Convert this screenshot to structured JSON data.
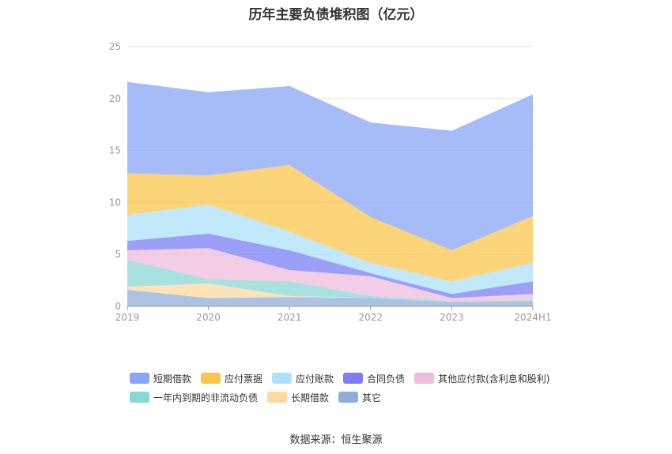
{
  "chart_data": {
    "type": "area",
    "stacked": true,
    "title": "历年主要负债堆积图（亿元）",
    "categories": [
      "2019",
      "2020",
      "2021",
      "2022",
      "2023",
      "2024H1"
    ],
    "ylim": [
      0,
      25
    ],
    "yticks": [
      0,
      5,
      10,
      15,
      20,
      25
    ],
    "grid": true,
    "legend_position": "bottom",
    "series": [
      {
        "name": "其它",
        "color": "#8faedb",
        "values": [
          1.6,
          0.8,
          0.9,
          0.8,
          0.4,
          0.5
        ]
      },
      {
        "name": "长期借款",
        "color": "#fdd9a0",
        "values": [
          0.3,
          1.4,
          0.1,
          0.0,
          0.0,
          0.0
        ]
      },
      {
        "name": "一年内到期的非流动负债",
        "color": "#8ad8d6",
        "values": [
          2.6,
          0.4,
          1.4,
          0.2,
          0.1,
          0.1
        ]
      },
      {
        "name": "其他应付款(含利息和股利)",
        "color": "#efbbdc",
        "values": [
          0.9,
          3.0,
          1.1,
          1.9,
          0.3,
          0.6
        ]
      },
      {
        "name": "合同负债",
        "color": "#7b7ff5",
        "values": [
          0.9,
          1.4,
          1.9,
          0.3,
          0.4,
          1.2
        ]
      },
      {
        "name": "应付账款",
        "color": "#aee0fa",
        "values": [
          2.5,
          2.8,
          1.8,
          1.0,
          1.2,
          1.8
        ]
      },
      {
        "name": "应付票据",
        "color": "#fbc54c",
        "values": [
          4.0,
          2.8,
          6.4,
          4.4,
          3.0,
          4.5
        ]
      },
      {
        "name": "短期借款",
        "color": "#88a5f7",
        "values": [
          8.8,
          8.0,
          7.6,
          9.1,
          11.5,
          11.7
        ]
      }
    ],
    "legend_rows": [
      [
        "短期借款",
        "应付票据",
        "应付账款",
        "合同负债",
        "其他应付款(含利息和股利)"
      ],
      [
        "一年内到期的非流动负债",
        "长期借款",
        "其它"
      ]
    ]
  },
  "legend": {
    "row1": [
      {
        "label": "短期借款",
        "color": "#88a5f7"
      },
      {
        "label": "应付票据",
        "color": "#fbc54c"
      },
      {
        "label": "应付账款",
        "color": "#aee0fa"
      },
      {
        "label": "合同负债",
        "color": "#7b7ff5"
      },
      {
        "label": "其他应付款(含利息和股利)",
        "color": "#efbbdc"
      }
    ],
    "row2": [
      {
        "label": "一年内到期的非流动负债",
        "color": "#8ad8d6"
      },
      {
        "label": "长期借款",
        "color": "#fdd9a0"
      },
      {
        "label": "其它",
        "color": "#8faedb"
      }
    ]
  },
  "footer": {
    "source": "数据来源：恒生聚源"
  }
}
